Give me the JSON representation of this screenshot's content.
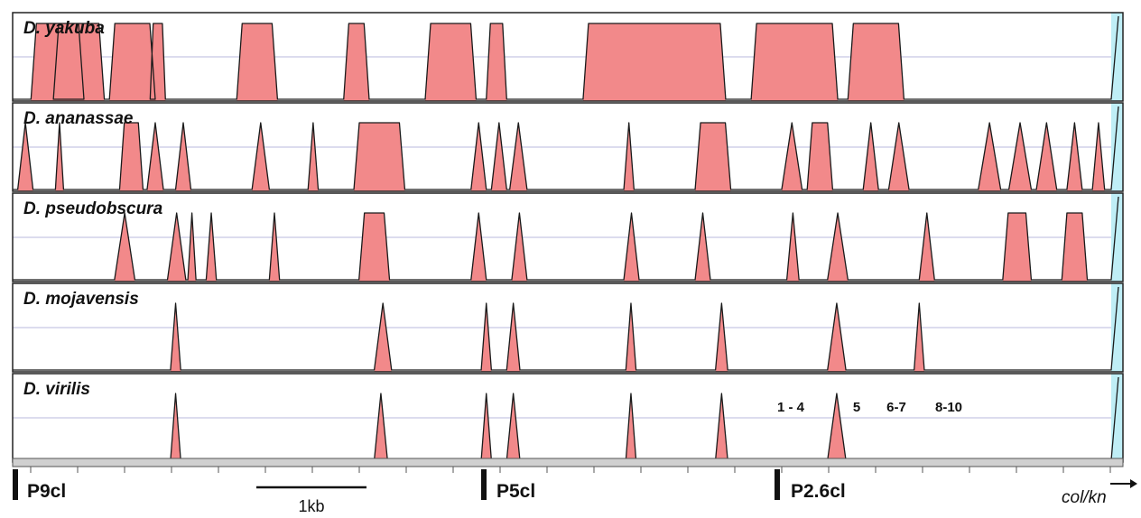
{
  "chart_data": {
    "type": "area",
    "panels": [
      {
        "species": "D. yakuba",
        "peaks": [
          [
            0.18,
            0.7
          ],
          [
            0.4,
            0.9
          ],
          [
            0.95,
            1.4
          ],
          [
            1.35,
            1.5
          ],
          [
            2.2,
            2.6
          ],
          [
            3.25,
            3.5
          ],
          [
            4.05,
            4.55
          ],
          [
            4.65,
            4.85
          ],
          [
            5.6,
            7.0
          ],
          [
            7.25,
            8.1
          ],
          [
            8.2,
            8.75
          ]
        ]
      },
      {
        "species": "D. ananassae",
        "peaks": [
          [
            0.05,
            0.2
          ],
          [
            0.42,
            0.5
          ],
          [
            1.05,
            1.28
          ],
          [
            1.32,
            1.48
          ],
          [
            1.6,
            1.75
          ],
          [
            2.35,
            2.52
          ],
          [
            2.9,
            3.0
          ],
          [
            3.35,
            3.85
          ],
          [
            4.5,
            4.65
          ],
          [
            4.7,
            4.85
          ],
          [
            4.88,
            5.05
          ],
          [
            6.0,
            6.1
          ],
          [
            6.7,
            7.05
          ],
          [
            7.55,
            7.75
          ],
          [
            7.8,
            8.05
          ],
          [
            8.35,
            8.5
          ],
          [
            8.6,
            8.8
          ],
          [
            9.48,
            9.7
          ],
          [
            9.78,
            10.0
          ],
          [
            10.05,
            10.25
          ],
          [
            10.35,
            10.5
          ],
          [
            10.6,
            10.72
          ]
        ]
      },
      {
        "species": "D. pseudobscura",
        "peaks": [
          [
            1.0,
            1.2
          ],
          [
            1.52,
            1.7
          ],
          [
            1.72,
            1.8
          ],
          [
            1.9,
            2.0
          ],
          [
            2.52,
            2.62
          ],
          [
            3.4,
            3.7
          ],
          [
            4.5,
            4.65
          ],
          [
            4.9,
            5.05
          ],
          [
            6.0,
            6.15
          ],
          [
            6.7,
            6.85
          ],
          [
            7.6,
            7.72
          ],
          [
            8.0,
            8.2
          ],
          [
            8.9,
            9.05
          ],
          [
            9.72,
            10.0
          ],
          [
            10.3,
            10.55
          ]
        ]
      },
      {
        "species": "D. mojavensis",
        "peaks": [
          [
            1.55,
            1.65
          ],
          [
            3.55,
            3.72
          ],
          [
            4.6,
            4.7
          ],
          [
            4.85,
            4.98
          ],
          [
            6.02,
            6.12
          ],
          [
            6.9,
            7.02
          ],
          [
            8.0,
            8.18
          ],
          [
            8.85,
            8.95
          ]
        ]
      },
      {
        "species": "D. virilis",
        "peaks": [
          [
            1.55,
            1.65
          ],
          [
            3.55,
            3.68
          ],
          [
            4.6,
            4.7
          ],
          [
            4.85,
            4.98
          ],
          [
            6.02,
            6.12
          ],
          [
            6.9,
            7.02
          ],
          [
            8.0,
            8.18
          ]
        ]
      }
    ],
    "region_labels": [
      "1 - 4",
      "5",
      "6-7",
      "8-10"
    ],
    "markers": [
      "P9cl",
      "P5cl",
      "P2.6cl"
    ],
    "scale_bar": "1kb",
    "gene_label": "col/kn",
    "colors": {
      "peak": "#f2898a",
      "edge": "#bfeef6",
      "gridline": "#b8b8dc",
      "frame": "#222222"
    }
  }
}
